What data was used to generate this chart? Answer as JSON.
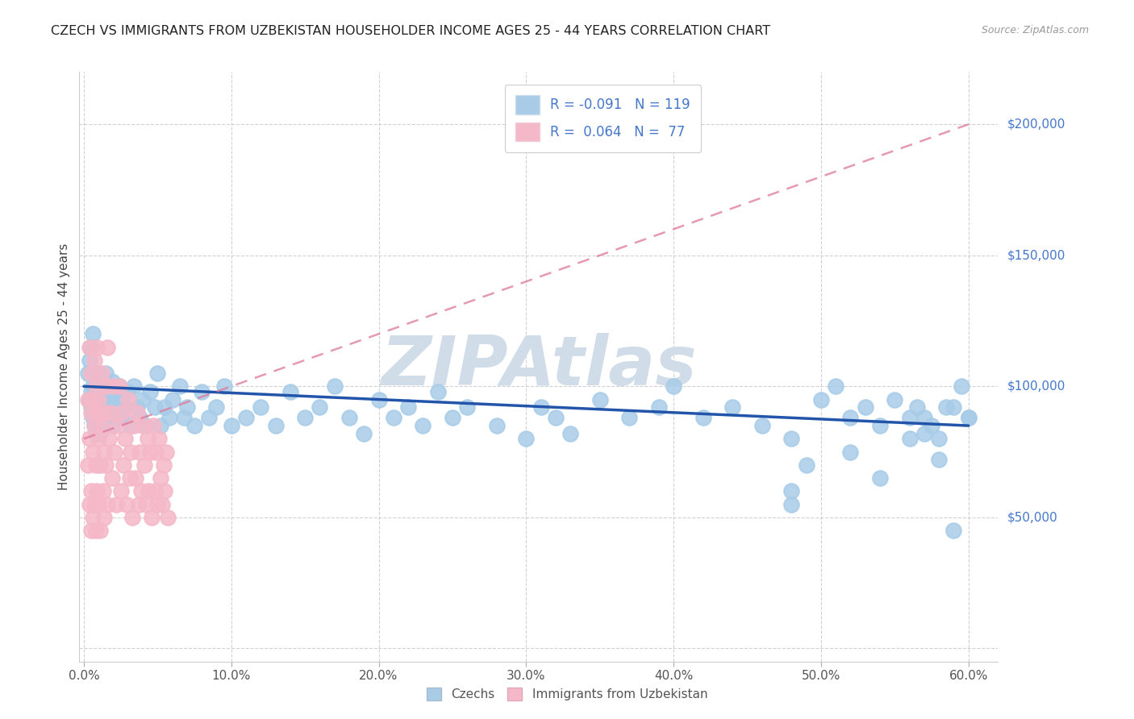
{
  "title": "CZECH VS IMMIGRANTS FROM UZBEKISTAN HOUSEHOLDER INCOME AGES 25 - 44 YEARS CORRELATION CHART",
  "source": "Source: ZipAtlas.com",
  "ylabel_label": "Householder Income Ages 25 - 44 years",
  "czechs_color": "#a8cce8",
  "uzbekistan_color": "#f5b8c8",
  "czechs_edge": "#5599cc",
  "uzbekistan_edge": "#ee7799",
  "trendline_czech_color": "#2255aa",
  "trendline_uzbekistan_color": "#dd7799",
  "watermark_color": "#c8d8e8",
  "legend_text_color": "#4477cc",
  "czechs_x": [
    0.003,
    0.004,
    0.004,
    0.005,
    0.005,
    0.005,
    0.006,
    0.006,
    0.006,
    0.007,
    0.007,
    0.007,
    0.008,
    0.008,
    0.008,
    0.009,
    0.009,
    0.01,
    0.01,
    0.01,
    0.011,
    0.011,
    0.012,
    0.012,
    0.013,
    0.013,
    0.014,
    0.014,
    0.015,
    0.015,
    0.016,
    0.017,
    0.018,
    0.019,
    0.02,
    0.021,
    0.022,
    0.023,
    0.024,
    0.025,
    0.026,
    0.028,
    0.03,
    0.032,
    0.034,
    0.036,
    0.038,
    0.04,
    0.042,
    0.045,
    0.048,
    0.05,
    0.052,
    0.055,
    0.058,
    0.06,
    0.065,
    0.068,
    0.07,
    0.075,
    0.08,
    0.085,
    0.09,
    0.095,
    0.1,
    0.11,
    0.12,
    0.13,
    0.14,
    0.15,
    0.16,
    0.17,
    0.18,
    0.19,
    0.2,
    0.21,
    0.22,
    0.23,
    0.24,
    0.25,
    0.26,
    0.28,
    0.3,
    0.31,
    0.32,
    0.33,
    0.35,
    0.37,
    0.39,
    0.4,
    0.42,
    0.44,
    0.46,
    0.48,
    0.5,
    0.51,
    0.52,
    0.53,
    0.54,
    0.55,
    0.56,
    0.57,
    0.58,
    0.59,
    0.6,
    0.48,
    0.52,
    0.54,
    0.56,
    0.565,
    0.57,
    0.575,
    0.58,
    0.585,
    0.59,
    0.595,
    0.6,
    0.48,
    0.49
  ],
  "czechs_y": [
    105000,
    95000,
    110000,
    92000,
    98000,
    115000,
    88000,
    100000,
    120000,
    85000,
    95000,
    105000,
    90000,
    98000,
    82000,
    92000,
    102000,
    88000,
    96000,
    105000,
    82000,
    95000,
    90000,
    100000,
    88000,
    96000,
    85000,
    98000,
    90000,
    105000,
    92000,
    88000,
    95000,
    102000,
    85000,
    98000,
    92000,
    88000,
    100000,
    95000,
    88000,
    92000,
    98000,
    85000,
    100000,
    92000,
    88000,
    95000,
    85000,
    98000,
    92000,
    105000,
    85000,
    92000,
    88000,
    95000,
    100000,
    88000,
    92000,
    85000,
    98000,
    88000,
    92000,
    100000,
    85000,
    88000,
    92000,
    85000,
    98000,
    88000,
    92000,
    100000,
    88000,
    82000,
    95000,
    88000,
    92000,
    85000,
    98000,
    88000,
    92000,
    85000,
    80000,
    92000,
    88000,
    82000,
    95000,
    88000,
    92000,
    100000,
    88000,
    92000,
    85000,
    80000,
    95000,
    100000,
    88000,
    92000,
    85000,
    95000,
    88000,
    82000,
    80000,
    92000,
    88000,
    60000,
    75000,
    65000,
    80000,
    92000,
    88000,
    85000,
    72000,
    92000,
    45000,
    100000,
    88000,
    55000,
    70000
  ],
  "uzbekistan_x": [
    0.003,
    0.003,
    0.004,
    0.004,
    0.004,
    0.005,
    0.005,
    0.005,
    0.005,
    0.006,
    0.006,
    0.006,
    0.007,
    0.007,
    0.007,
    0.008,
    0.008,
    0.008,
    0.009,
    0.009,
    0.009,
    0.01,
    0.01,
    0.01,
    0.011,
    0.011,
    0.012,
    0.012,
    0.013,
    0.013,
    0.014,
    0.014,
    0.015,
    0.015,
    0.016,
    0.016,
    0.017,
    0.018,
    0.019,
    0.02,
    0.021,
    0.022,
    0.023,
    0.024,
    0.025,
    0.026,
    0.027,
    0.028,
    0.029,
    0.03,
    0.031,
    0.032,
    0.033,
    0.034,
    0.035,
    0.036,
    0.037,
    0.038,
    0.039,
    0.04,
    0.041,
    0.042,
    0.043,
    0.044,
    0.045,
    0.046,
    0.047,
    0.048,
    0.049,
    0.05,
    0.051,
    0.052,
    0.053,
    0.054,
    0.055,
    0.056,
    0.057
  ],
  "uzbekistan_y": [
    95000,
    70000,
    80000,
    55000,
    115000,
    90000,
    60000,
    105000,
    45000,
    95000,
    75000,
    50000,
    85000,
    110000,
    55000,
    100000,
    70000,
    45000,
    90000,
    60000,
    115000,
    80000,
    55000,
    95000,
    70000,
    45000,
    85000,
    105000,
    60000,
    90000,
    75000,
    50000,
    100000,
    70000,
    55000,
    115000,
    80000,
    90000,
    65000,
    100000,
    75000,
    55000,
    85000,
    100000,
    60000,
    90000,
    70000,
    80000,
    55000,
    95000,
    65000,
    75000,
    50000,
    85000,
    65000,
    90000,
    55000,
    75000,
    60000,
    85000,
    70000,
    55000,
    80000,
    60000,
    75000,
    50000,
    85000,
    60000,
    75000,
    55000,
    80000,
    65000,
    55000,
    70000,
    60000,
    75000,
    50000
  ],
  "czechs_trend_x": [
    0.0,
    0.6
  ],
  "czechs_trend_y": [
    100000,
    85000
  ],
  "uzbek_trend_x": [
    0.0,
    0.6
  ],
  "uzbek_trend_y": [
    80000,
    200000
  ],
  "xlim": [
    -0.003,
    0.62
  ],
  "ylim": [
    -5000,
    220000
  ],
  "xticks": [
    0.0,
    0.1,
    0.2,
    0.3,
    0.4,
    0.5,
    0.6
  ],
  "xticklabels": [
    "0.0%",
    "10.0%",
    "20.0%",
    "30.0%",
    "40.0%",
    "50.0%",
    "60.0%"
  ],
  "yticks": [
    0,
    50000,
    100000,
    150000,
    200000
  ],
  "yticklabels_right": [
    "$200,000",
    "$150,000",
    "$100,000",
    "$50,000"
  ],
  "ytick_positions_right": [
    200000,
    150000,
    100000,
    50000
  ]
}
